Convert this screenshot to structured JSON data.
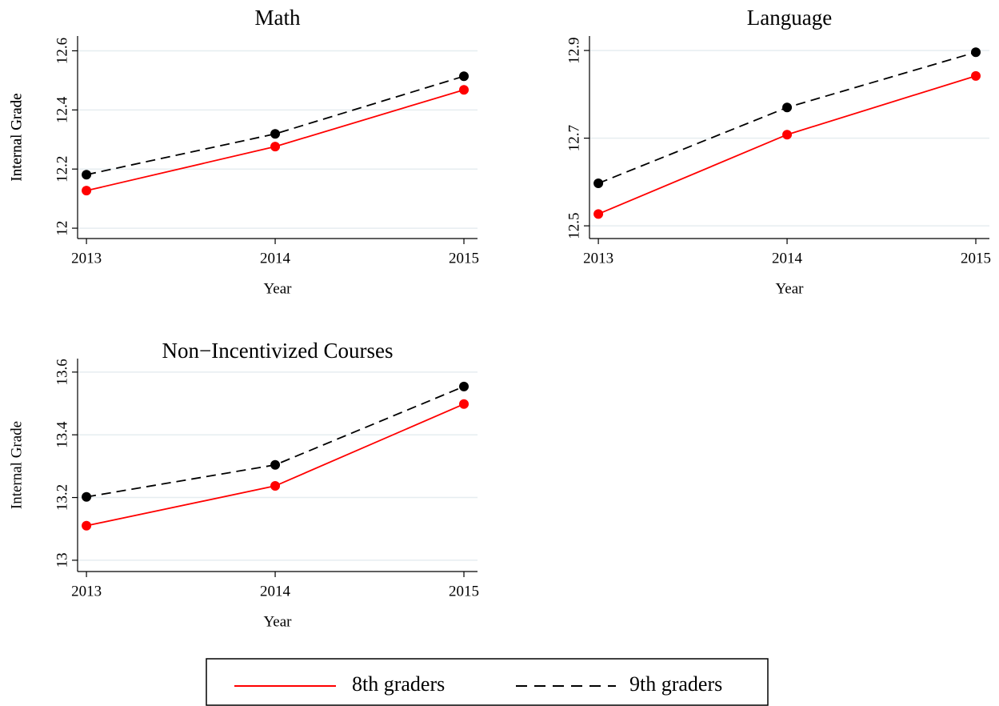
{
  "chart_data": [
    {
      "type": "line",
      "title": "Math",
      "ylabel": "Internal Grade",
      "xlabel": "Year",
      "x": [
        2013,
        2014,
        2015
      ],
      "xlim": [
        2012.953,
        2015.072
      ],
      "xticks": [
        2013,
        2014,
        2015
      ],
      "ylim": [
        11.965,
        12.65
      ],
      "yticks": [
        12,
        {
          "value": 12.2,
          "label": "12.2"
        },
        {
          "value": 12.4,
          "label": "12.4"
        },
        {
          "value": 12.6,
          "label": "12.6"
        }
      ],
      "grid": true,
      "series": [
        {
          "name": "8th graders",
          "color": "#ff0000",
          "linestyle": "solid",
          "values": [
            12.127,
            12.276,
            12.468
          ]
        },
        {
          "name": "9th graders",
          "color": "#000000",
          "linestyle": "dashed",
          "values": [
            12.181,
            12.319,
            12.514
          ]
        }
      ]
    },
    {
      "type": "line",
      "title": "Language",
      "ylabel": "Internal Grade",
      "xlabel": "Year",
      "x": [
        2013,
        2014,
        2015
      ],
      "xlim": [
        2012.953,
        2015.072
      ],
      "xticks": [
        2013,
        2014,
        2015
      ],
      "ylim": [
        12.471,
        12.933
      ],
      "yticks": [
        12.5,
        12.7,
        12.9
      ],
      "grid": true,
      "series": [
        {
          "color": "#ff0000",
          "linestyle": "solid",
          "values": [
            12.527,
            12.708,
            12.842
          ]
        },
        {
          "color": "#000000",
          "linestyle": "dashed",
          "values": [
            12.597,
            12.77,
            12.896
          ]
        }
      ]
    },
    {
      "type": "line",
      "title": "Non−Incentivized Courses",
      "ylabel": "Internal Grade",
      "xlabel": "Year",
      "x": [
        2013,
        2014,
        2015
      ],
      "xlim": [
        2012.953,
        2015.072
      ],
      "xticks": [
        2013,
        2014,
        2015
      ],
      "ylim": [
        12.964,
        13.643
      ],
      "yticks": [
        13,
        13.2,
        13.4,
        13.6
      ],
      "grid": true,
      "series": [
        {
          "color": "#ff0000",
          "linestyle": "solid",
          "values": [
            13.11,
            13.237,
            13.498
          ]
        },
        {
          "color": "#000000",
          "linestyle": "dashed",
          "values": [
            13.202,
            13.304,
            13.554
          ]
        }
      ]
    }
  ]
}
